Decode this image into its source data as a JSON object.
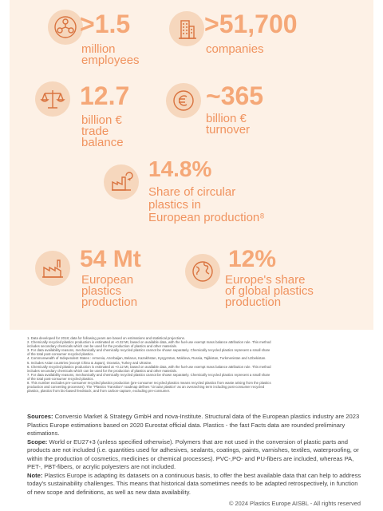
{
  "colors": {
    "accent": "#f5a878",
    "accent_text": "#f0935f",
    "panel_bg": "#fdf1e6",
    "icon_bg": "#f6d7bd"
  },
  "stats": {
    "employees": {
      "value": ">1.5",
      "line1": "million",
      "line2": "employees",
      "icon": "people-network-icon"
    },
    "companies": {
      "value": ">51,700",
      "line1": "companies",
      "icon": "office-buildings-icon"
    },
    "trade": {
      "value": "12.7",
      "line1": "billion €",
      "line2": "trade",
      "line3": "balance",
      "icon": "balance-scale-icon"
    },
    "turnover": {
      "value": "~365",
      "line1": "billion €",
      "line2": "turnover",
      "icon": "euro-coin-icon"
    },
    "circular": {
      "value": "14.8%",
      "line1": "Share of circular",
      "line2": "plastics in",
      "line3": "European production⁸",
      "icon": "recycling-factory-icon"
    },
    "production": {
      "value": "54 Mt",
      "line1": "European",
      "line2": "plastics",
      "line3": "production",
      "icon": "factory-icon"
    },
    "share": {
      "value": "12%",
      "line1": "Europe's share",
      "line2": "of global plastics",
      "line3": "production",
      "icon": "globe-icon"
    }
  },
  "footnotes": [
    "1. Data developed for 2018; data for following years are based on estimations and statistical projections.",
    "2. Chemically recycled plastics production is estimated at ~0.32 Mt, based on available data, with the fuel-use exempt mass balance attribution rule. This method",
    "includes secondary chemicals which can be used for the production of plastics and other materials.",
    "3. For data availability reasons, mechanically and chemically recycled plastics cannot be shown separately. Chemically recycled plastics represent a small share",
    "of the total post-consumer recycled plastics.",
    "4. Commonwealth of Independent States : Armenia, Azerbaijan, Belarus, Kazakhstan, Kyrgyzstan, Moldova, Russia, Tajikistan, Turkmenistan and Uzbekistan.",
    "5. Includes Asian countries (except China & Japan), Oceania, Turkey and Ukraine.",
    "6. Chemically recycled plastics production is estimated at ~0.12 Mt, based on available data, with the fuel-use exempt mass balance attribution rule. This method",
    "includes secondary chemicals which can be used for the production of plastics and other materials.",
    "7. For data availability reasons, mechanically and chemically recycled plastics cannot be shown separately. Chemically recycled plastics represent a small share",
    "of the total post-consumer recycled plastics.",
    "8. This number excludes pre-consumer recycled plastics production (pre-consumer recycled plastics means recycled plastics from waste arising from the plastics",
    "production and converting processes). The \"Plastics Transition\" roadmap defines \"circular plastics\" as an overarching term including post-consumer recycled",
    "plastics, plastics from bio-based feedstock, and from carbon-capture, excluding pre-consumer."
  ],
  "sources": {
    "label": "Sources:",
    "text": "Conversio Market & Strategy GmbH and nova-Institute. Structural data of the European plastics industry are 2023 Plastics Europe estimations based on 2020 Eurostat official data. Plastics - the fast Facts data are rounded preliminary estimations."
  },
  "scope": {
    "label": "Scope:",
    "text": "World or EU27+3 (unless specified otherwise). Polymers that are not used in the conversion of plastic parts and products are not included (i.e. quantities used for adhesives, sealants, coatings, paints, varnishes, textiles, waterproofing, or within the production of cosmetics, medicines or chemical processes). PVC-,PO- and PU-fibers are included, whereas PA, PET-, PBT-fibers, or acrylic polyesters are not included."
  },
  "note": {
    "label": "Note:",
    "text": "Plastics Europe is adapting its datasets on a continuous basis, to offer the best available data that can help to address today's sustainability challenges. This means that historical data sometimes needs to be adapted retrospectively, in function of new scope and definitions, as well as new data availability."
  },
  "copyright": "© 2024 Plastics Europe AISBL - All rights reserved"
}
